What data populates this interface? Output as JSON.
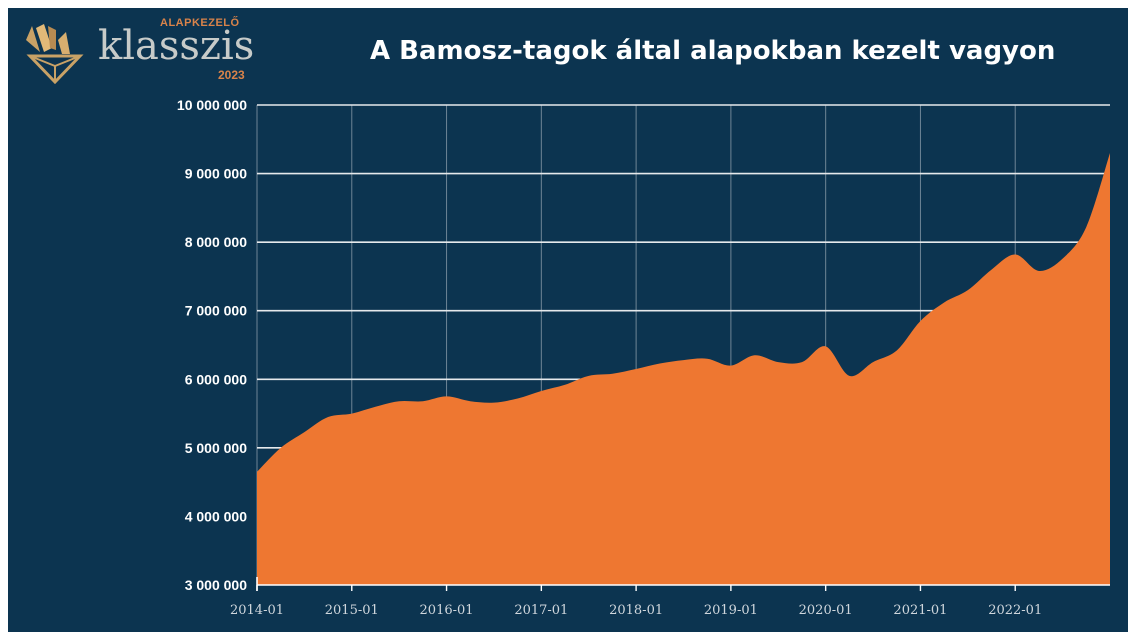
{
  "logo": {
    "top_text": "ALAPKEZELŐ",
    "word": "klasszis",
    "year": "2023",
    "icon": "klasszis-diamond-logo-icon",
    "colors": {
      "accent": "#d9834a",
      "word": "#c7cbc9"
    }
  },
  "colors": {
    "background": "#0c3450",
    "area": "#ee7731",
    "grid": "#e6e9ec",
    "text": "#ffffff"
  },
  "chart_data": {
    "type": "area",
    "title": "A Bamosz-tagok által alapokban kezelt vagyon",
    "xlabel": "",
    "ylabel": "",
    "ylim": [
      3000000,
      10000000
    ],
    "yticks": [
      3000000,
      4000000,
      5000000,
      6000000,
      7000000,
      8000000,
      9000000,
      10000000
    ],
    "ytick_labels": [
      "3 000 000",
      "4 000 000",
      "5 000 000",
      "6 000 000",
      "7 000 000",
      "8 000 000",
      "9 000 000",
      "10 000 000"
    ],
    "xlim": [
      "2014-01",
      "2023-01"
    ],
    "xticks": [
      "2014-01",
      "2015-01",
      "2016-01",
      "2017-01",
      "2018-01",
      "2019-01",
      "2020-01",
      "2021-01",
      "2022-01"
    ],
    "grid": true,
    "legend": "none",
    "series": [
      {
        "x": [
          "2014-01",
          "2014-04",
          "2014-07",
          "2014-10",
          "2015-01",
          "2015-04",
          "2015-07",
          "2015-10",
          "2016-01",
          "2016-04",
          "2016-07",
          "2016-10",
          "2017-01",
          "2017-04",
          "2017-07",
          "2017-10",
          "2018-01",
          "2018-04",
          "2018-07",
          "2018-10",
          "2019-01",
          "2019-04",
          "2019-07",
          "2019-10",
          "2020-01",
          "2020-04",
          "2020-07",
          "2020-10",
          "2021-01",
          "2021-04",
          "2021-07",
          "2021-10",
          "2022-01",
          "2022-04",
          "2022-07",
          "2022-10",
          "2023-01"
        ],
        "values": [
          4650000,
          5000000,
          5230000,
          5450000,
          5500000,
          5600000,
          5680000,
          5680000,
          5750000,
          5680000,
          5660000,
          5720000,
          5830000,
          5920000,
          6050000,
          6080000,
          6150000,
          6230000,
          6280000,
          6300000,
          6200000,
          6350000,
          6250000,
          6250000,
          6480000,
          6050000,
          6250000,
          6420000,
          6850000,
          7120000,
          7300000,
          7600000,
          7820000,
          7580000,
          7760000,
          8220000,
          9300000
        ]
      }
    ]
  }
}
